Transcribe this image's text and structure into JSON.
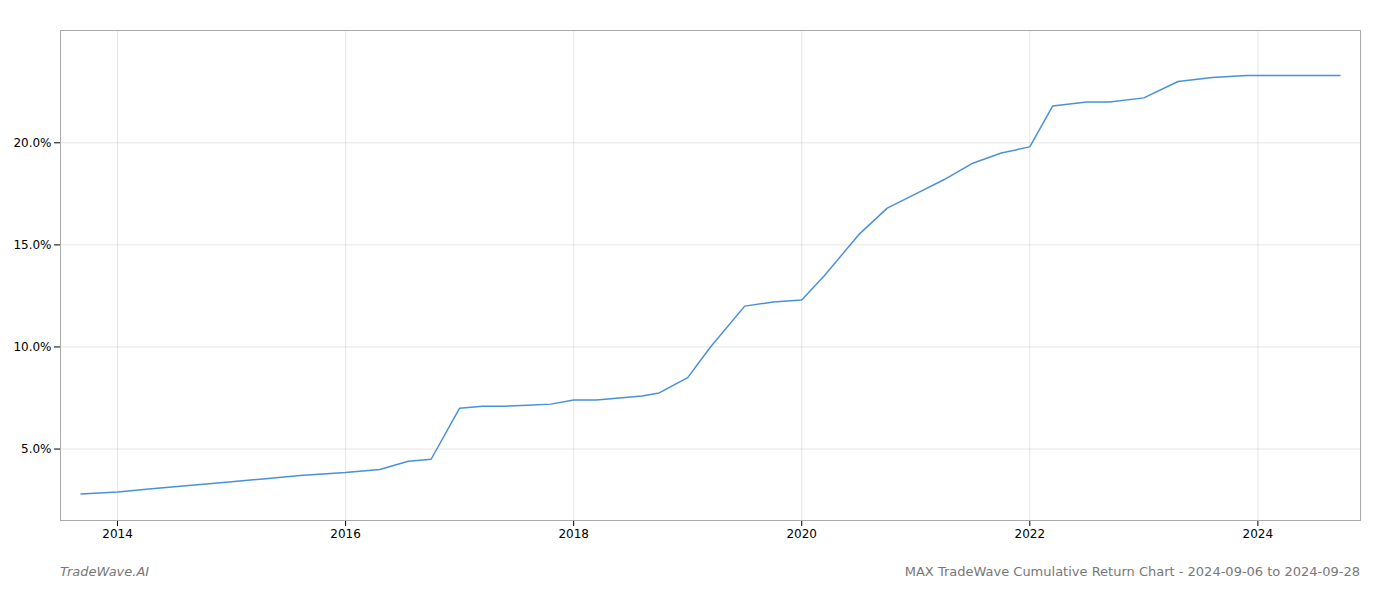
{
  "chart_data": {
    "type": "line",
    "title": "MAX TradeWave Cumulative Return Chart - 2024-09-06 to 2024-09-28",
    "annotations": [
      "TradeWave.AI"
    ],
    "x": [
      2013.68,
      2014.0,
      2014.3,
      2014.6,
      2015.0,
      2015.3,
      2015.6,
      2016.0,
      2016.3,
      2016.55,
      2016.75,
      2017.0,
      2017.2,
      2017.4,
      2017.6,
      2017.8,
      2018.0,
      2018.2,
      2018.4,
      2018.6,
      2018.75,
      2019.0,
      2019.2,
      2019.5,
      2019.75,
      2020.0,
      2020.2,
      2020.5,
      2020.75,
      2021.0,
      2021.25,
      2021.5,
      2021.75,
      2022.0,
      2022.2,
      2022.5,
      2022.7,
      2023.0,
      2023.3,
      2023.6,
      2023.9,
      2024.0,
      2024.5,
      2024.72
    ],
    "values": [
      2.8,
      2.9,
      3.05,
      3.2,
      3.4,
      3.55,
      3.7,
      3.85,
      4.0,
      4.4,
      4.5,
      7.0,
      7.1,
      7.1,
      7.15,
      7.2,
      7.4,
      7.4,
      7.5,
      7.6,
      7.75,
      8.5,
      10.0,
      12.0,
      12.2,
      12.3,
      13.5,
      15.5,
      16.8,
      17.5,
      18.2,
      19.0,
      19.5,
      19.8,
      21.8,
      22.0,
      22.0,
      22.2,
      23.0,
      23.2,
      23.3,
      23.3,
      23.3,
      23.3
    ],
    "color": "#4a90d9",
    "xlim": [
      2013.5,
      2024.9
    ],
    "xticks": [
      2014,
      2016,
      2018,
      2020,
      2022,
      2024
    ],
    "ylim": [
      1.5,
      25.5
    ],
    "yticks": [
      {
        "value": 5.0,
        "label": "5.0%"
      },
      {
        "value": 10.0,
        "label": "10.0%"
      },
      {
        "value": 15.0,
        "label": "15.0%"
      },
      {
        "value": 20.0,
        "label": "20.0%"
      }
    ],
    "grid": true
  }
}
